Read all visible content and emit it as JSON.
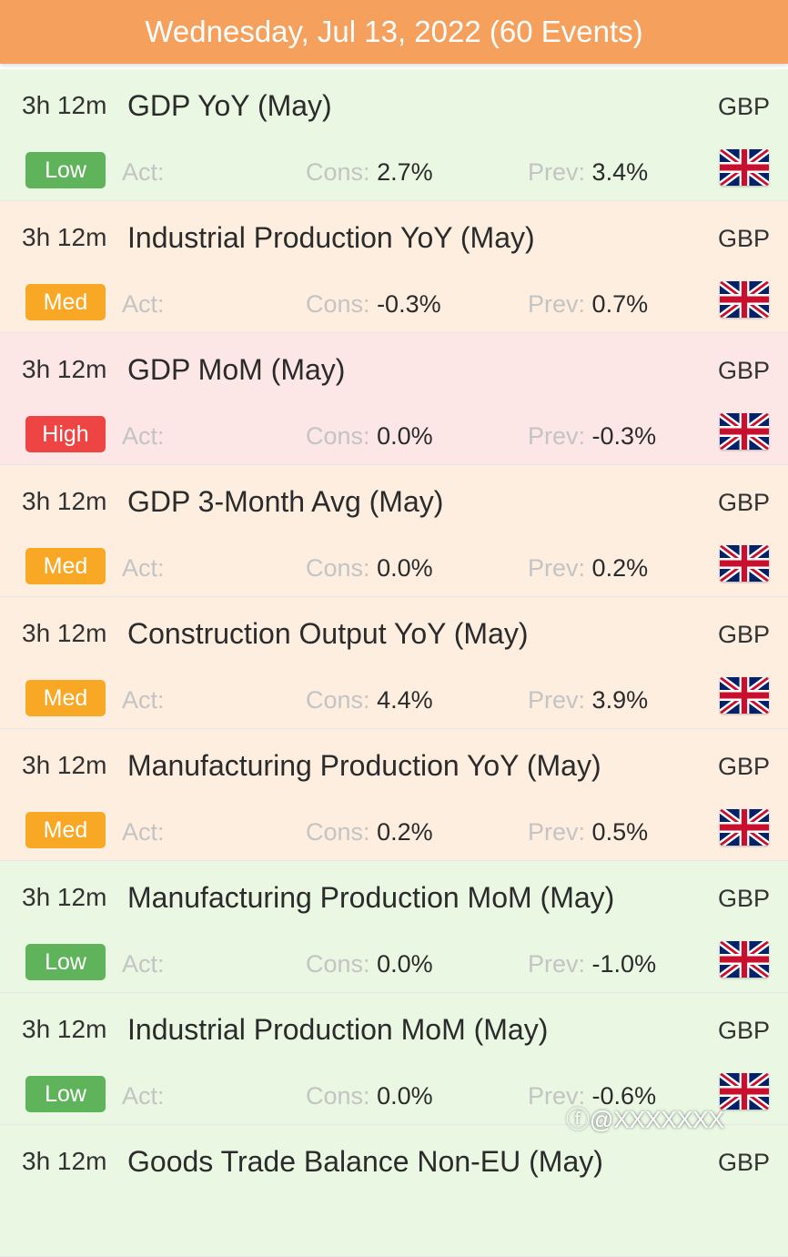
{
  "header": {
    "title": "Wednesday, Jul 13, 2022 (60 Events)"
  },
  "labels": {
    "act": "Act:",
    "cons": "Cons:",
    "prev": "Prev:"
  },
  "colors": {
    "header": "#f5a05c",
    "low": "#5fb35a",
    "med": "#f9a825",
    "high": "#ef4444"
  },
  "events": [
    {
      "time": "3h 12m",
      "title": "GDP YoY (May)",
      "currency": "GBP",
      "impact": "Low",
      "level": "low",
      "act": "",
      "cons": "2.7%",
      "prev": "3.4%",
      "flag": "uk-flag-icon"
    },
    {
      "time": "3h 12m",
      "title": "Industrial Production YoY (May)",
      "currency": "GBP",
      "impact": "Med",
      "level": "med",
      "act": "",
      "cons": "-0.3%",
      "prev": "0.7%",
      "flag": "uk-flag-icon"
    },
    {
      "time": "3h 12m",
      "title": "GDP MoM (May)",
      "currency": "GBP",
      "impact": "High",
      "level": "high",
      "act": "",
      "cons": "0.0%",
      "prev": "-0.3%",
      "flag": "uk-flag-icon"
    },
    {
      "time": "3h 12m",
      "title": "GDP 3-Month Avg (May)",
      "currency": "GBP",
      "impact": "Med",
      "level": "med",
      "act": "",
      "cons": "0.0%",
      "prev": "0.2%",
      "flag": "uk-flag-icon"
    },
    {
      "time": "3h 12m",
      "title": "Construction Output YoY (May)",
      "currency": "GBP",
      "impact": "Med",
      "level": "med",
      "act": "",
      "cons": "4.4%",
      "prev": "3.9%",
      "flag": "uk-flag-icon"
    },
    {
      "time": "3h 12m",
      "title": "Manufacturing Production YoY (May)",
      "currency": "GBP",
      "impact": "Med",
      "level": "med",
      "act": "",
      "cons": "0.2%",
      "prev": "0.5%",
      "flag": "uk-flag-icon"
    },
    {
      "time": "3h 12m",
      "title": "Manufacturing Production MoM (May)",
      "currency": "GBP",
      "impact": "Low",
      "level": "low",
      "act": "",
      "cons": "0.0%",
      "prev": "-1.0%",
      "flag": "uk-flag-icon"
    },
    {
      "time": "3h 12m",
      "title": "Industrial Production MoM (May)",
      "currency": "GBP",
      "impact": "Low",
      "level": "low",
      "act": "",
      "cons": "0.0%",
      "prev": "-0.6%",
      "flag": "uk-flag-icon"
    },
    {
      "time": "3h 12m",
      "title": "Goods Trade Balance Non-EU (May)",
      "currency": "GBP",
      "impact": "",
      "level": "low",
      "act": "",
      "cons": "",
      "prev": "",
      "flag": "uk-flag-icon"
    }
  ],
  "watermark": "@XXXXXXX"
}
